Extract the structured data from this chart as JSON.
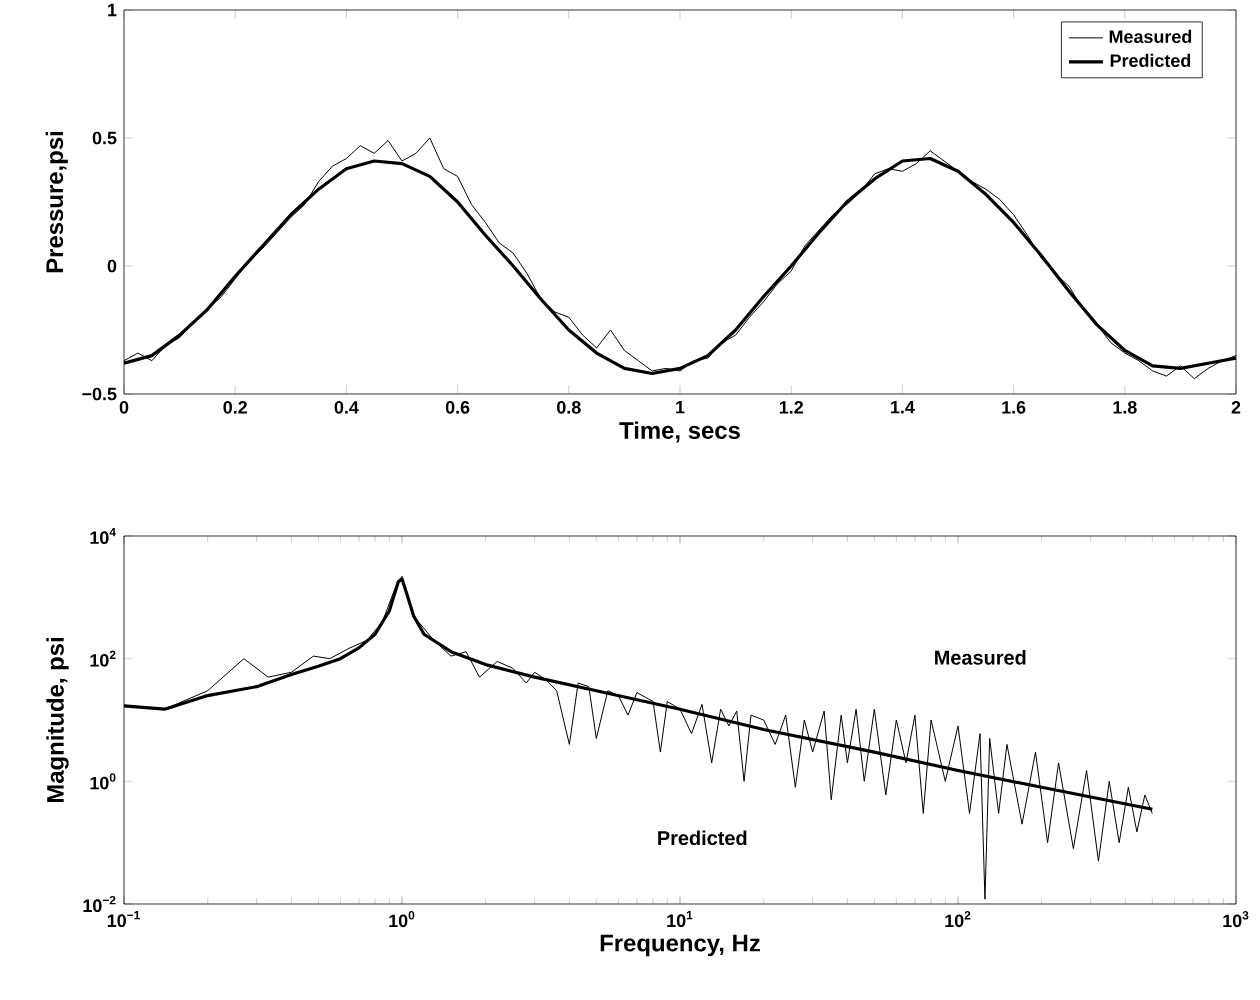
{
  "chart_data": [
    {
      "type": "line",
      "xlabel": "Time, secs",
      "ylabel": "Pressure,psi",
      "xlim": [
        0,
        2
      ],
      "ylim": [
        -0.5,
        1
      ],
      "xticks": [
        0,
        0.2,
        0.4,
        0.6,
        0.8,
        1,
        1.2,
        1.4,
        1.6,
        1.8,
        2
      ],
      "yticks": [
        {
          "value": -0.5,
          "label": "−0.5"
        },
        0,
        0.5,
        1
      ],
      "legend": "top right",
      "series": [
        {
          "name": "Measured",
          "color": "#000000",
          "x": [
            0,
            0.025,
            0.05,
            0.075,
            0.1,
            0.125,
            0.15,
            0.175,
            0.2,
            0.225,
            0.25,
            0.275,
            0.3,
            0.325,
            0.35,
            0.375,
            0.4,
            0.425,
            0.45,
            0.475,
            0.5,
            0.525,
            0.55,
            0.575,
            0.6,
            0.625,
            0.65,
            0.675,
            0.7,
            0.725,
            0.75,
            0.775,
            0.8,
            0.825,
            0.85,
            0.875,
            0.9,
            0.925,
            0.95,
            0.975,
            1.0,
            1.025,
            1.05,
            1.075,
            1.1,
            1.125,
            1.15,
            1.175,
            1.2,
            1.225,
            1.25,
            1.275,
            1.3,
            1.325,
            1.35,
            1.375,
            1.4,
            1.425,
            1.45,
            1.475,
            1.5,
            1.525,
            1.55,
            1.575,
            1.6,
            1.625,
            1.65,
            1.675,
            1.7,
            1.725,
            1.75,
            1.775,
            1.8,
            1.825,
            1.85,
            1.875,
            1.9,
            1.925,
            1.95,
            1.975,
            2.0
          ],
          "values": [
            -0.37,
            -0.34,
            -0.37,
            -0.31,
            -0.28,
            -0.22,
            -0.17,
            -0.12,
            -0.05,
            0.02,
            0.07,
            0.13,
            0.19,
            0.24,
            0.33,
            0.39,
            0.42,
            0.47,
            0.44,
            0.49,
            0.41,
            0.44,
            0.5,
            0.38,
            0.35,
            0.24,
            0.17,
            0.09,
            0.05,
            -0.03,
            -0.13,
            -0.18,
            -0.2,
            -0.27,
            -0.32,
            -0.25,
            -0.33,
            -0.37,
            -0.41,
            -0.4,
            -0.41,
            -0.37,
            -0.36,
            -0.3,
            -0.27,
            -0.2,
            -0.14,
            -0.07,
            -0.02,
            0.08,
            0.14,
            0.2,
            0.24,
            0.29,
            0.36,
            0.38,
            0.37,
            0.4,
            0.45,
            0.41,
            0.37,
            0.33,
            0.3,
            0.26,
            0.2,
            0.12,
            0.03,
            -0.03,
            -0.08,
            -0.17,
            -0.23,
            -0.3,
            -0.34,
            -0.37,
            -0.41,
            -0.43,
            -0.39,
            -0.44,
            -0.4,
            -0.37,
            -0.35
          ]
        },
        {
          "name": "Predicted",
          "color": "#000000",
          "x": [
            0,
            0.05,
            0.1,
            0.15,
            0.2,
            0.25,
            0.3,
            0.35,
            0.4,
            0.45,
            0.5,
            0.55,
            0.6,
            0.65,
            0.7,
            0.75,
            0.8,
            0.85,
            0.9,
            0.95,
            1.0,
            1.05,
            1.1,
            1.15,
            1.2,
            1.25,
            1.3,
            1.35,
            1.4,
            1.45,
            1.5,
            1.55,
            1.6,
            1.65,
            1.7,
            1.75,
            1.8,
            1.85,
            1.9,
            1.95,
            2.0
          ],
          "values": [
            -0.38,
            -0.35,
            -0.27,
            -0.17,
            -0.04,
            0.08,
            0.2,
            0.3,
            0.38,
            0.41,
            0.4,
            0.35,
            0.25,
            0.12,
            0.0,
            -0.13,
            -0.25,
            -0.34,
            -0.4,
            -0.42,
            -0.4,
            -0.35,
            -0.25,
            -0.12,
            0.0,
            0.13,
            0.25,
            0.34,
            0.41,
            0.42,
            0.37,
            0.28,
            0.17,
            0.04,
            -0.1,
            -0.23,
            -0.33,
            -0.39,
            -0.4,
            -0.38,
            -0.36
          ]
        }
      ]
    },
    {
      "type": "line",
      "xlabel": "Frequency, Hz",
      "ylabel": "Magnitude, psi",
      "log": "xy",
      "xlim": [
        0.1,
        1000
      ],
      "ylim": [
        0.01,
        10000
      ],
      "xticks": [
        {
          "value": 0.1,
          "label": "10$^{−1}$"
        },
        {
          "value": 1,
          "label": "10$^{0}$"
        },
        {
          "value": 10,
          "label": "10$^{1}$"
        },
        {
          "value": 100,
          "label": "10$^{2}$"
        },
        {
          "value": 1000,
          "label": "10$^{3}$"
        }
      ],
      "yticks": [
        {
          "value": 0.01,
          "label": "10$^{−2}$"
        },
        {
          "value": 1,
          "label": "10$^{0}$"
        },
        {
          "value": 100,
          "label": "10$^{2}$"
        },
        {
          "value": 10000,
          "label": "10$^{4}$"
        }
      ],
      "annotations": [
        "Measured",
        "Predicted"
      ],
      "series": [
        {
          "color": "#000000",
          "x": [
            0.1,
            0.14,
            0.2,
            0.27,
            0.33,
            0.4,
            0.48,
            0.55,
            0.65,
            0.75,
            0.85,
            0.95,
            1.0,
            1.05,
            1.1,
            1.3,
            1.5,
            1.7,
            1.9,
            2.2,
            2.5,
            2.8,
            3,
            3.3,
            3.6,
            4,
            4.3,
            4.7,
            5,
            5.5,
            6,
            6.5,
            7,
            8,
            8.5,
            9,
            10,
            11,
            12,
            13,
            14,
            15,
            16,
            17,
            18,
            20,
            22,
            24,
            26,
            28,
            30,
            33,
            35,
            38,
            40,
            43,
            46,
            50,
            55,
            60,
            65,
            70,
            75,
            80,
            90,
            100,
            110,
            120,
            125,
            130,
            140,
            150,
            170,
            190,
            210,
            230,
            260,
            290,
            320,
            350,
            380,
            410,
            440,
            470,
            500
          ],
          "values": [
            17,
            15,
            30,
            100,
            50,
            60,
            110,
            100,
            150,
            200,
            400,
            1500,
            2200,
            1000,
            500,
            200,
            110,
            130,
            50,
            90,
            70,
            40,
            60,
            45,
            30,
            4,
            40,
            35,
            5,
            30,
            25,
            12,
            28,
            20,
            3,
            20,
            15,
            6,
            18,
            2,
            15,
            8,
            14,
            1,
            12,
            10,
            4,
            12,
            0.8,
            10,
            3,
            14,
            0.5,
            12,
            2,
            15,
            1,
            15,
            0.6,
            10,
            2,
            12,
            0.3,
            10,
            1,
            8,
            0.3,
            6,
            0.012,
            5,
            0.3,
            4,
            0.2,
            3,
            0.1,
            2,
            0.08,
            1.5,
            0.05,
            1,
            0.1,
            0.8,
            0.15,
            0.6,
            0.3
          ]
        },
        {
          "color": "#000000",
          "x": [
            0.1,
            0.14,
            0.2,
            0.3,
            0.4,
            0.5,
            0.6,
            0.7,
            0.8,
            0.9,
            0.97,
            1.0,
            1.05,
            1.1,
            1.2,
            1.5,
            2,
            3,
            5,
            10,
            20,
            50,
            100,
            200,
            500
          ],
          "values": [
            17,
            15,
            25,
            35,
            55,
            75,
            100,
            150,
            250,
            600,
            1800,
            2000,
            1000,
            500,
            250,
            130,
            80,
            50,
            30,
            15,
            7,
            3,
            1.5,
            0.8,
            0.35
          ]
        }
      ]
    }
  ]
}
